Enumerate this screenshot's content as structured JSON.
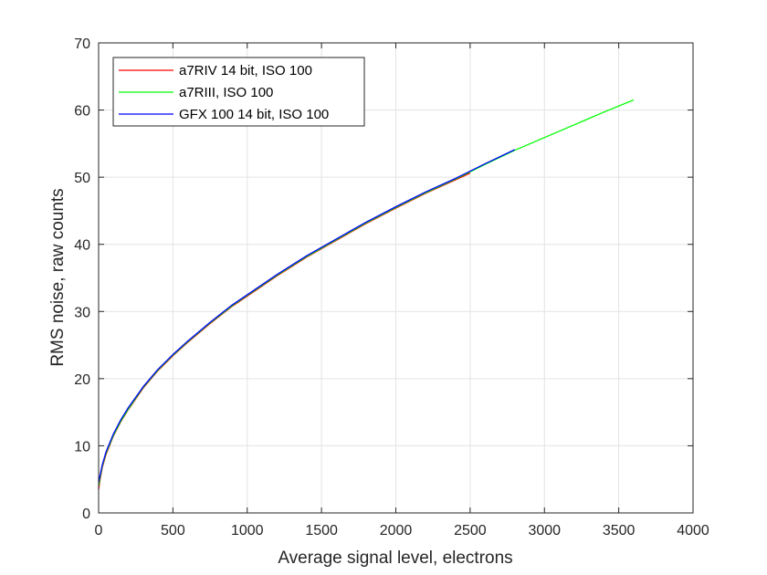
{
  "chart_data": {
    "type": "line",
    "title": "",
    "xlabel": "Average signal level, electrons",
    "ylabel": "RMS noise, raw counts",
    "xlim": [
      0,
      4000
    ],
    "ylim": [
      0,
      70
    ],
    "xticks": [
      0,
      500,
      1000,
      1500,
      2000,
      2500,
      3000,
      3500,
      4000
    ],
    "yticks": [
      0,
      10,
      20,
      30,
      40,
      50,
      60,
      70
    ],
    "grid": true,
    "legend_position": "top-left",
    "series": [
      {
        "name": "a7RIV 14 bit, ISO 100",
        "color": "#ff0000",
        "x": [
          0,
          10,
          25,
          50,
          100,
          150,
          200,
          300,
          400,
          500,
          600,
          750,
          900,
          1000,
          1200,
          1400,
          1600,
          1800,
          2000,
          2200,
          2400,
          2500
        ],
        "y": [
          3.5,
          5.0,
          6.8,
          8.7,
          11.5,
          13.6,
          15.4,
          18.6,
          21.2,
          23.4,
          25.4,
          28.2,
          30.8,
          32.3,
          35.3,
          38.1,
          40.6,
          43.1,
          45.4,
          47.6,
          49.6,
          50.6
        ]
      },
      {
        "name": "a7RIII, ISO 100",
        "color": "#00ff00",
        "x": [
          0,
          10,
          25,
          50,
          100,
          150,
          200,
          300,
          400,
          500,
          600,
          750,
          900,
          1000,
          1200,
          1400,
          1600,
          1800,
          2000,
          2200,
          2400,
          2600,
          2800,
          3000,
          3200,
          3400,
          3600
        ],
        "y": [
          4.0,
          5.3,
          7.0,
          8.9,
          11.6,
          13.7,
          15.5,
          18.7,
          21.3,
          23.5,
          25.5,
          28.3,
          30.9,
          32.4,
          35.4,
          38.2,
          40.7,
          43.2,
          45.5,
          47.7,
          49.7,
          51.9,
          54.0,
          55.9,
          57.8,
          59.7,
          61.5
        ]
      },
      {
        "name": "GFX 100 14 bit, ISO 100",
        "color": "#0000ff",
        "x": [
          0,
          10,
          25,
          50,
          100,
          150,
          200,
          300,
          400,
          500,
          600,
          750,
          900,
          1000,
          1200,
          1400,
          1600,
          1800,
          2000,
          2200,
          2400,
          2600,
          2800
        ],
        "y": [
          4.5,
          5.6,
          7.2,
          9.1,
          11.8,
          13.9,
          15.7,
          18.8,
          21.4,
          23.6,
          25.6,
          28.4,
          31.0,
          32.5,
          35.5,
          38.3,
          40.8,
          43.3,
          45.6,
          47.8,
          49.8,
          52.0,
          54.1
        ]
      }
    ]
  }
}
